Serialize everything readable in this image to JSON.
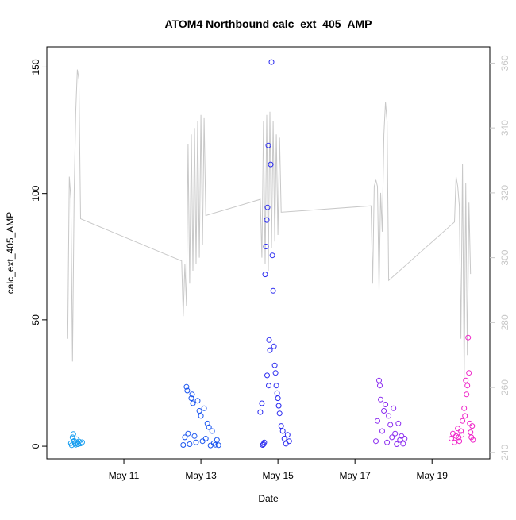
{
  "chart_data": {
    "type": "scatter",
    "title": "ATOM4 Northbound calc_ext_405_AMP",
    "xlabel": "Date",
    "ylabel": "calc_ext_405_AMP",
    "xlim": [
      "2021-05-09 00:00",
      "2021-05-20 12:00"
    ],
    "ylim": [
      -5,
      158
    ],
    "y2lim": [
      238,
      365
    ],
    "x_ticks": [
      {
        "date": "2021-05-11",
        "label": "May 11"
      },
      {
        "date": "2021-05-13",
        "label": "May 13"
      },
      {
        "date": "2021-05-15",
        "label": "May 15"
      },
      {
        "date": "2021-05-17",
        "label": "May 17"
      },
      {
        "date": "2021-05-19",
        "label": "May 19"
      }
    ],
    "y_ticks": [
      0,
      50,
      100,
      150
    ],
    "y2_ticks": [
      240,
      260,
      280,
      300,
      320,
      340,
      360
    ],
    "grid": false,
    "colors": {
      "axis": "#000000",
      "secondary_axis": "#c8c8c8",
      "line": "#c8c8c8"
    },
    "series": [
      {
        "axis": "left",
        "marker": "open-circle",
        "groups": [
          {
            "color": "#1a9ff0",
            "points": [
              [
                "2021-05-09 15:00",
                1.2
              ],
              [
                "2021-05-09 15:30",
                0.4
              ],
              [
                "2021-05-09 16:00",
                3.5
              ],
              [
                "2021-05-09 16:30",
                4.8
              ],
              [
                "2021-05-09 17:00",
                2.1
              ],
              [
                "2021-05-09 17:30",
                1.0
              ],
              [
                "2021-05-09 18:00",
                0.6
              ],
              [
                "2021-05-09 18:30",
                2.8
              ],
              [
                "2021-05-09 19:00",
                1.5
              ],
              [
                "2021-05-09 19:30",
                0.8
              ],
              [
                "2021-05-09 20:00",
                1.9
              ],
              [
                "2021-05-09 21:00",
                1.1
              ],
              [
                "2021-05-09 22:00",
                1.6
              ]
            ]
          },
          {
            "color": "#1a55f0",
            "points": [
              [
                "2021-05-12 13:00",
                0.5
              ],
              [
                "2021-05-12 14:00",
                3.5
              ],
              [
                "2021-05-12 15:00",
                23.5
              ],
              [
                "2021-05-12 15:30",
                22.0
              ],
              [
                "2021-05-12 16:00",
                5.0
              ],
              [
                "2021-05-12 17:00",
                0.8
              ],
              [
                "2021-05-12 18:00",
                19.0
              ],
              [
                "2021-05-12 18:30",
                20.5
              ],
              [
                "2021-05-12 19:00",
                17.0
              ],
              [
                "2021-05-12 20:00",
                4.0
              ],
              [
                "2021-05-12 21:00",
                1.5
              ],
              [
                "2021-05-12 22:00",
                18.0
              ],
              [
                "2021-05-12 23:00",
                14.0
              ],
              [
                "2021-05-13 00:00",
                12.0
              ],
              [
                "2021-05-13 01:00",
                2.0
              ],
              [
                "2021-05-13 02:00",
                15.0
              ],
              [
                "2021-05-13 03:00",
                3.0
              ],
              [
                "2021-05-13 04:00",
                9.0
              ],
              [
                "2021-05-13 05:00",
                7.5
              ],
              [
                "2021-05-13 06:00",
                0.3
              ],
              [
                "2021-05-13 07:00",
                6.0
              ],
              [
                "2021-05-13 08:00",
                1.2
              ],
              [
                "2021-05-13 09:00",
                0.6
              ],
              [
                "2021-05-13 10:00",
                2.5
              ],
              [
                "2021-05-13 11:00",
                0.4
              ]
            ]
          },
          {
            "color": "#2a2af0",
            "points": [
              [
                "2021-05-14 13:00",
                13.5
              ],
              [
                "2021-05-14 14:00",
                17.0
              ],
              [
                "2021-05-14 15:00",
                0.8
              ],
              [
                "2021-05-14 16:00",
                68.0
              ],
              [
                "2021-05-14 16:30",
                79.0
              ],
              [
                "2021-05-14 17:00",
                89.5
              ],
              [
                "2021-05-14 17:30",
                94.5
              ],
              [
                "2021-05-14 18:00",
                119.0
              ],
              [
                "2021-05-14 18:30",
                42.0
              ],
              [
                "2021-05-14 19:00",
                38.0
              ],
              [
                "2021-05-14 19:30",
                111.5
              ],
              [
                "2021-05-14 20:00",
                152.0
              ],
              [
                "2021-05-14 20:30",
                75.5
              ],
              [
                "2021-05-14 21:00",
                61.5
              ],
              [
                "2021-05-14 21:30",
                39.5
              ],
              [
                "2021-05-14 22:00",
                32.0
              ],
              [
                "2021-05-14 22:30",
                29.0
              ],
              [
                "2021-05-14 23:00",
                24.0
              ],
              [
                "2021-05-14 23:30",
                21.0
              ],
              [
                "2021-05-15 00:00",
                19.0
              ],
              [
                "2021-05-15 00:30",
                16.0
              ],
              [
                "2021-05-15 01:00",
                13.0
              ],
              [
                "2021-05-15 02:00",
                8.0
              ],
              [
                "2021-05-15 03:00",
                6.0
              ],
              [
                "2021-05-15 04:00",
                3.0
              ],
              [
                "2021-05-15 05:00",
                1.0
              ],
              [
                "2021-05-15 06:00",
                4.5
              ],
              [
                "2021-05-15 07:00",
                2.0
              ],
              [
                "2021-05-14 14:30",
                0.5
              ],
              [
                "2021-05-14 15:30",
                1.5
              ],
              [
                "2021-05-14 17:15",
                28.0
              ],
              [
                "2021-05-14 18:15",
                24.0
              ]
            ]
          },
          {
            "color": "#8a2af0",
            "points": [
              [
                "2021-05-17 13:00",
                2.0
              ],
              [
                "2021-05-17 14:00",
                10.0
              ],
              [
                "2021-05-17 15:00",
                26.0
              ],
              [
                "2021-05-17 15:30",
                24.0
              ],
              [
                "2021-05-17 16:00",
                18.5
              ],
              [
                "2021-05-17 17:00",
                6.0
              ],
              [
                "2021-05-17 18:00",
                14.0
              ],
              [
                "2021-05-17 19:00",
                16.5
              ],
              [
                "2021-05-17 20:00",
                1.5
              ],
              [
                "2021-05-17 21:00",
                12.0
              ],
              [
                "2021-05-17 22:00",
                8.5
              ],
              [
                "2021-05-17 23:00",
                3.5
              ],
              [
                "2021-05-18 00:00",
                15.0
              ],
              [
                "2021-05-18 01:00",
                5.0
              ],
              [
                "2021-05-18 02:00",
                0.8
              ],
              [
                "2021-05-18 03:00",
                9.0
              ],
              [
                "2021-05-18 04:00",
                2.5
              ],
              [
                "2021-05-18 05:00",
                4.0
              ],
              [
                "2021-05-18 06:00",
                1.0
              ],
              [
                "2021-05-18 07:00",
                3.0
              ]
            ]
          },
          {
            "color": "#ef23c8",
            "points": [
              [
                "2021-05-19 12:00",
                3.0
              ],
              [
                "2021-05-19 13:00",
                5.0
              ],
              [
                "2021-05-19 14:00",
                1.5
              ],
              [
                "2021-05-19 15:00",
                4.0
              ],
              [
                "2021-05-19 16:00",
                7.0
              ],
              [
                "2021-05-19 17:00",
                2.0
              ],
              [
                "2021-05-19 18:00",
                6.0
              ],
              [
                "2021-05-19 19:00",
                10.0
              ],
              [
                "2021-05-19 20:00",
                15.0
              ],
              [
                "2021-05-19 20:30",
                12.0
              ],
              [
                "2021-05-19 21:00",
                26.0
              ],
              [
                "2021-05-19 21:30",
                20.5
              ],
              [
                "2021-05-19 22:00",
                24.0
              ],
              [
                "2021-05-19 22:30",
                43.0
              ],
              [
                "2021-05-19 23:00",
                29.0
              ],
              [
                "2021-05-19 23:30",
                9.0
              ],
              [
                "2021-05-20 00:00",
                5.5
              ],
              [
                "2021-05-20 00:30",
                3.5
              ],
              [
                "2021-05-20 01:00",
                8.0
              ],
              [
                "2021-05-20 01:30",
                2.5
              ],
              [
                "2021-05-19 16:30",
                3.5
              ],
              [
                "2021-05-19 18:30",
                4.5
              ]
            ]
          }
        ]
      },
      {
        "axis": "right",
        "type": "line",
        "color": "#c8c8c8",
        "points": [
          [
            "2021-05-09 13:00",
            275
          ],
          [
            "2021-05-09 14:00",
            325
          ],
          [
            "2021-05-09 15:00",
            318
          ],
          [
            "2021-05-09 16:00",
            268
          ],
          [
            "2021-05-09 17:00",
            320
          ],
          [
            "2021-05-09 18:00",
            345
          ],
          [
            "2021-05-09 19:00",
            358
          ],
          [
            "2021-05-09 20:00",
            355
          ],
          [
            "2021-05-09 21:00",
            312
          ],
          [
            "2021-05-12 12:00",
            299
          ],
          [
            "2021-05-12 13:00",
            282
          ],
          [
            "2021-05-12 14:00",
            298
          ],
          [
            "2021-05-12 15:00",
            285
          ],
          [
            "2021-05-12 16:00",
            335
          ],
          [
            "2021-05-12 17:00",
            292
          ],
          [
            "2021-05-12 18:00",
            338
          ],
          [
            "2021-05-12 19:00",
            296
          ],
          [
            "2021-05-12 20:00",
            340
          ],
          [
            "2021-05-12 21:00",
            298
          ],
          [
            "2021-05-12 22:00",
            342
          ],
          [
            "2021-05-12 23:00",
            300
          ],
          [
            "2021-05-13 00:00",
            344
          ],
          [
            "2021-05-13 01:00",
            304
          ],
          [
            "2021-05-13 02:00",
            343
          ],
          [
            "2021-05-13 03:00",
            313
          ],
          [
            "2021-05-14 13:00",
            318
          ],
          [
            "2021-05-14 14:00",
            300
          ],
          [
            "2021-05-14 15:00",
            342
          ],
          [
            "2021-05-14 16:00",
            298
          ],
          [
            "2021-05-14 17:00",
            344
          ],
          [
            "2021-05-14 18:00",
            296
          ],
          [
            "2021-05-14 19:00",
            345
          ],
          [
            "2021-05-14 20:00",
            303
          ],
          [
            "2021-05-14 21:00",
            342
          ],
          [
            "2021-05-14 22:00",
            305
          ],
          [
            "2021-05-14 23:00",
            338
          ],
          [
            "2021-05-15 00:00",
            307
          ],
          [
            "2021-05-15 01:00",
            337
          ],
          [
            "2021-05-15 02:00",
            314
          ],
          [
            "2021-05-17 10:00",
            316
          ],
          [
            "2021-05-17 11:00",
            292
          ],
          [
            "2021-05-17 12:00",
            322
          ],
          [
            "2021-05-17 13:00",
            324
          ],
          [
            "2021-05-17 14:00",
            322
          ],
          [
            "2021-05-17 15:00",
            290
          ],
          [
            "2021-05-17 16:00",
            320
          ],
          [
            "2021-05-17 17:00",
            308
          ],
          [
            "2021-05-17 18:00",
            338
          ],
          [
            "2021-05-17 19:00",
            348
          ],
          [
            "2021-05-17 20:00",
            342
          ],
          [
            "2021-05-17 21:00",
            293
          ],
          [
            "2021-05-19 14:00",
            311
          ],
          [
            "2021-05-19 15:00",
            325
          ],
          [
            "2021-05-19 16:00",
            322
          ],
          [
            "2021-05-19 17:00",
            316
          ],
          [
            "2021-05-19 18:00",
            275
          ],
          [
            "2021-05-19 19:00",
            329
          ],
          [
            "2021-05-19 20:00",
            262
          ],
          [
            "2021-05-19 21:00",
            323
          ],
          [
            "2021-05-19 22:00",
            270
          ],
          [
            "2021-05-19 23:00",
            317
          ],
          [
            "2021-05-20 00:00",
            295
          ]
        ]
      }
    ]
  }
}
